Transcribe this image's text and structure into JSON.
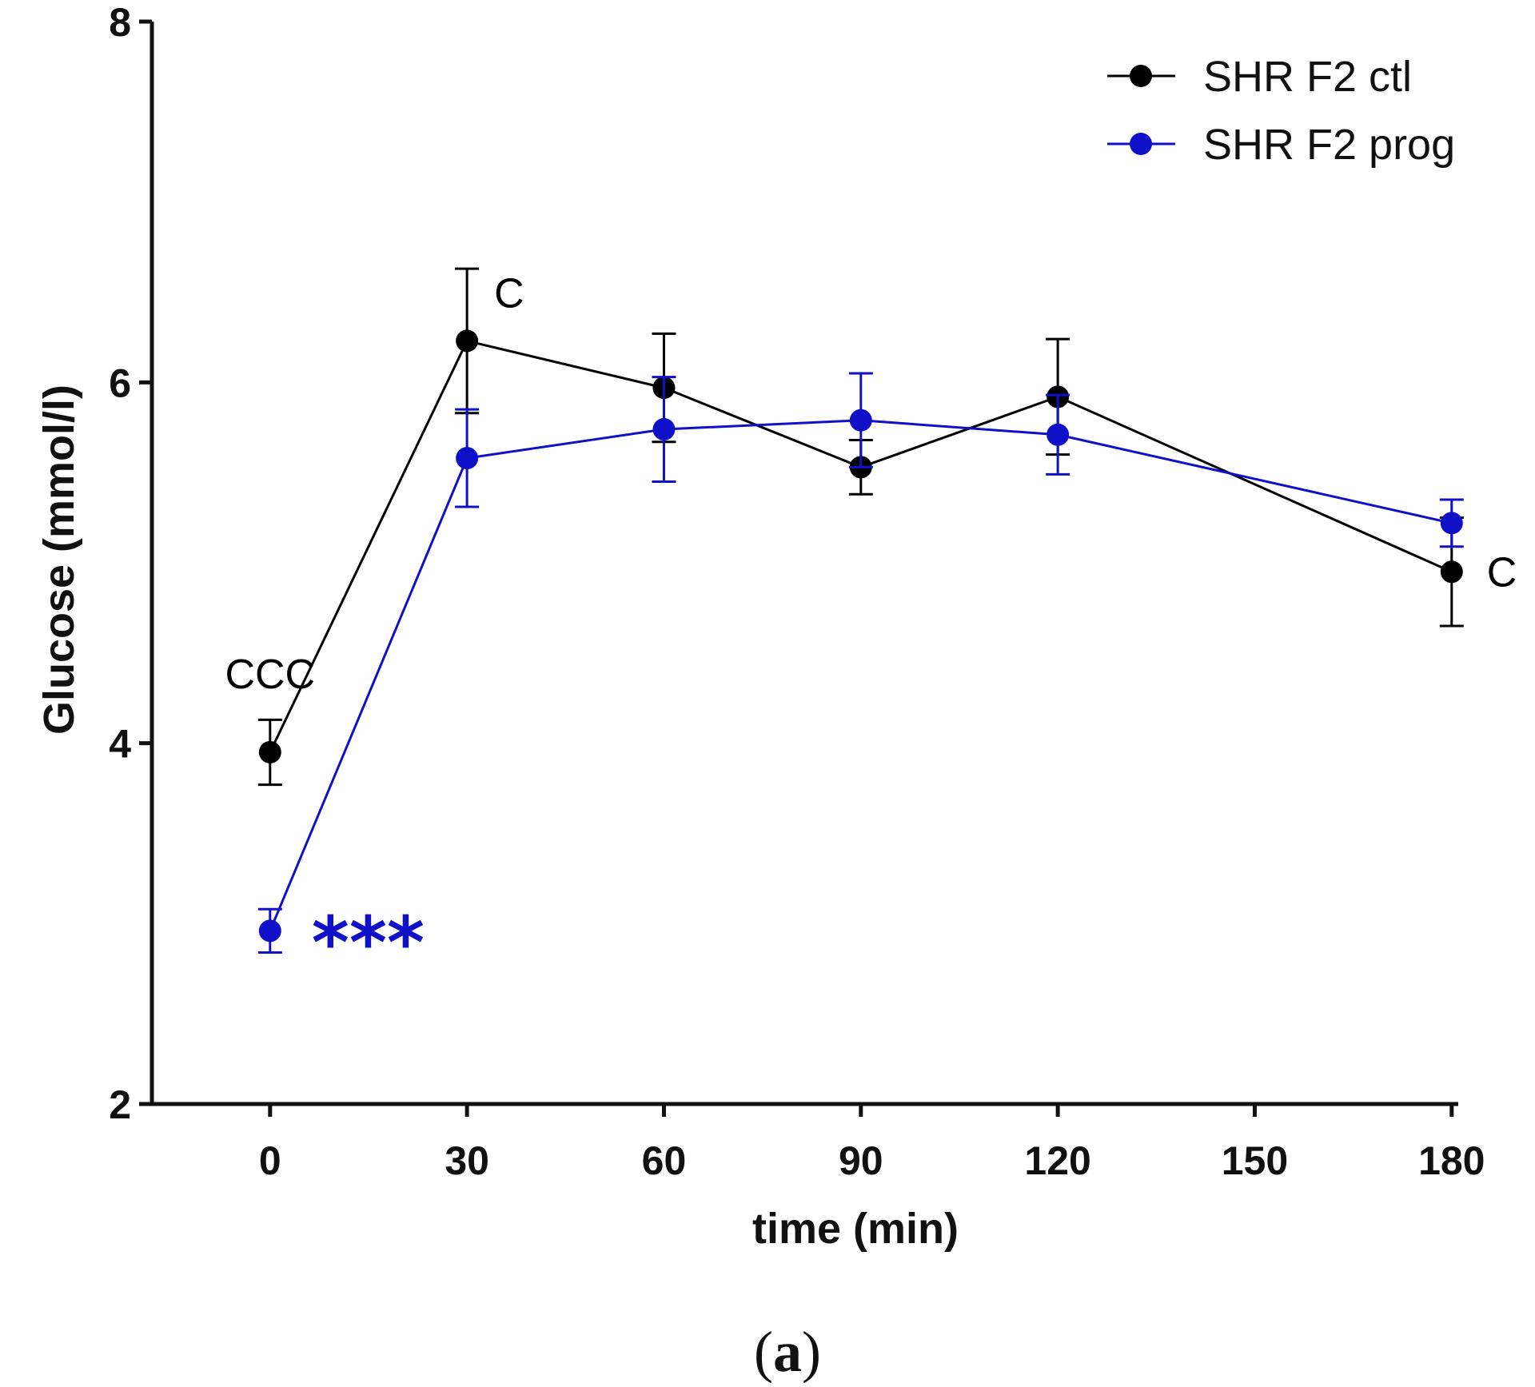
{
  "chart_data": {
    "type": "line",
    "title": "",
    "xlabel": "time (min)",
    "ylabel": "Glucose (mmol/l)",
    "xlim": [
      -18,
      181
    ],
    "ylim": [
      2,
      8
    ],
    "x_ticks": [
      0,
      30,
      60,
      90,
      120,
      150,
      180
    ],
    "y_ticks": [
      2,
      4,
      6,
      8
    ],
    "grid": false,
    "legend_position": "top-right",
    "series": [
      {
        "name": "SHR F2 ctl",
        "color": "#000000",
        "x": [
          0,
          30,
          60,
          90,
          120,
          180
        ],
        "y": [
          3.95,
          6.23,
          5.97,
          5.53,
          5.92,
          4.95
        ],
        "error": [
          0.18,
          0.4,
          0.3,
          0.15,
          0.32,
          0.3
        ]
      },
      {
        "name": "SHR F2 prog",
        "color": "#1010c8",
        "x": [
          0,
          30,
          60,
          90,
          120,
          180
        ],
        "y": [
          2.96,
          5.58,
          5.74,
          5.79,
          5.71,
          5.22
        ],
        "error": [
          0.12,
          0.27,
          0.29,
          0.26,
          0.22,
          0.13
        ]
      }
    ],
    "annotations": [
      {
        "text": "CCC",
        "x": 0,
        "y": 3.95,
        "color": "#000000",
        "anchor": "above"
      },
      {
        "text": "C",
        "x": 30,
        "y": 6.23,
        "color": "#000000",
        "anchor": "upper-right"
      },
      {
        "text": "C",
        "x": 180,
        "y": 4.95,
        "color": "#000000",
        "anchor": "right"
      },
      {
        "text": "***",
        "x": 0,
        "y": 2.96,
        "color": "#1010c8",
        "anchor": "right"
      }
    ]
  },
  "caption": {
    "open": "(",
    "letter": "a",
    "close": ")"
  }
}
